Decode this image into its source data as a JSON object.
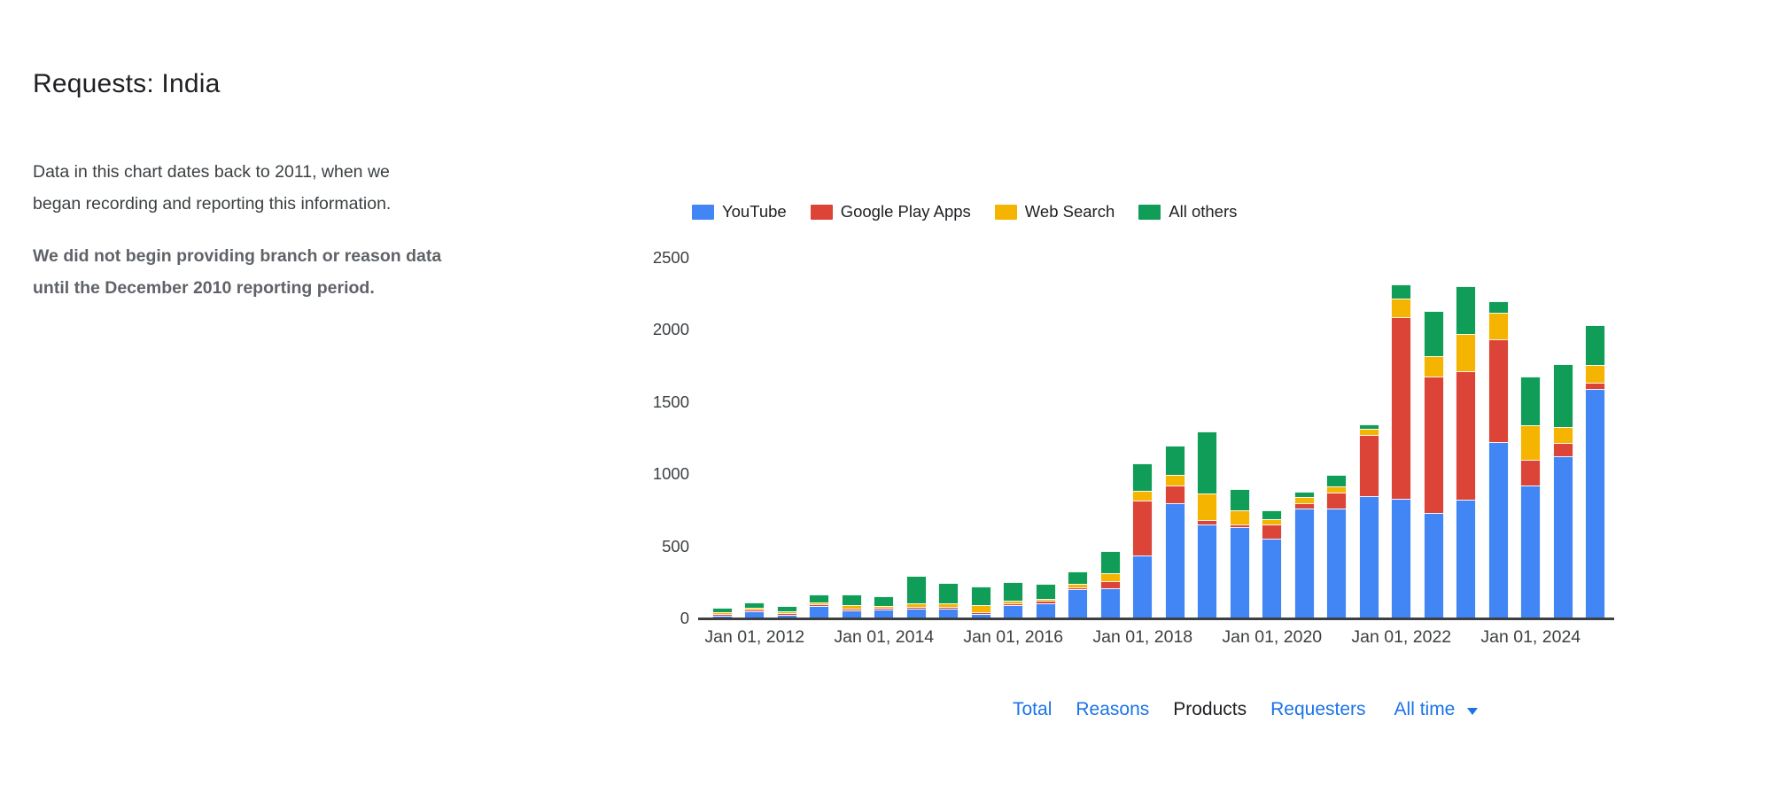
{
  "page": {
    "title": "Requests: India",
    "description": "Data in this chart dates back to 2011, when we\nbegan recording and reporting this information.",
    "note": "We did not begin providing branch or reason data\nuntil the December 2010 reporting period."
  },
  "legend": [
    {
      "label": "YouTube",
      "color": "#4285F4"
    },
    {
      "label": "Google Play Apps",
      "color": "#DB4437"
    },
    {
      "label": "Web Search",
      "color": "#F4B400"
    },
    {
      "label": "All others",
      "color": "#0F9D58"
    }
  ],
  "chart_data": {
    "type": "bar",
    "stacked": true,
    "title": "Requests: India — by product",
    "xlabel": "",
    "ylabel": "",
    "ylim": [
      0,
      2500
    ],
    "y_ticks": [
      0,
      500,
      1000,
      1500,
      2000,
      2500
    ],
    "grid": false,
    "legend_position": "top",
    "x": [
      "Jul 01, 2011",
      "Jan 01, 2012",
      "Jul 01, 2012",
      "Jan 01, 2013",
      "Jul 01, 2013",
      "Jan 01, 2014",
      "Jul 01, 2014",
      "Jan 01, 2015",
      "Jul 01, 2015",
      "Jan 01, 2016",
      "Jul 01, 2016",
      "Jan 01, 2017",
      "Jul 01, 2017",
      "Jan 01, 2018",
      "Jul 01, 2018",
      "Jan 01, 2019",
      "Jul 01, 2019",
      "Jan 01, 2020",
      "Jul 01, 2020",
      "Jan 01, 2021",
      "Jul 01, 2021",
      "Jan 01, 2022",
      "Jul 01, 2022",
      "Jan 01, 2023",
      "Jul 01, 2023",
      "Jan 01, 2024",
      "Jul 01, 2024",
      "Jan 01, 2025"
    ],
    "x_tick_labels": [
      "Jan 01, 2012",
      "Jan 01, 2014",
      "Jan 01, 2016",
      "Jan 01, 2018",
      "Jan 01, 2020",
      "Jan 01, 2022",
      "Jan 01, 2024"
    ],
    "x_tick_indices": [
      1,
      5,
      9,
      13,
      17,
      21,
      25
    ],
    "series": [
      {
        "name": "YouTube",
        "color": "#4285F4",
        "values": [
          18,
          50,
          26,
          85,
          55,
          60,
          65,
          70,
          30,
          95,
          106,
          200,
          210,
          435,
          800,
          650,
          630,
          555,
          760,
          760,
          850,
          830,
          730,
          825,
          1220,
          920,
          1125,
          1590
        ]
      },
      {
        "name": "Google Play Apps",
        "color": "#DB4437",
        "values": [
          10,
          8,
          8,
          8,
          10,
          10,
          6,
          10,
          8,
          12,
          14,
          8,
          50,
          380,
          123,
          30,
          20,
          95,
          40,
          115,
          420,
          1260,
          950,
          890,
          715,
          180,
          90,
          45
        ]
      },
      {
        "name": "Web Search",
        "color": "#F4B400",
        "values": [
          8,
          8,
          8,
          14,
          28,
          15,
          28,
          22,
          48,
          18,
          16,
          30,
          55,
          70,
          72,
          185,
          100,
          40,
          40,
          40,
          45,
          125,
          140,
          260,
          185,
          240,
          115,
          125
        ]
      },
      {
        "name": "All others",
        "color": "#0F9D58",
        "values": [
          32,
          36,
          38,
          55,
          72,
          68,
          190,
          142,
          130,
          124,
          102,
          85,
          150,
          190,
          205,
          430,
          145,
          60,
          40,
          80,
          30,
          100,
          310,
          330,
          80,
          340,
          435,
          275
        ]
      }
    ]
  },
  "tabs": {
    "items": [
      {
        "label": "Total",
        "active": false
      },
      {
        "label": "Reasons",
        "active": false
      },
      {
        "label": "Products",
        "active": true
      },
      {
        "label": "Requesters",
        "active": false
      }
    ]
  },
  "time_filter": {
    "label": "All time",
    "icon": "dropdown-arrow"
  },
  "colors": {
    "link_blue": "#1A73E8",
    "active_tab": "#202124",
    "axis_line": "#3C4043",
    "text_dark": "#202124",
    "text_gray": "#5F6368"
  }
}
